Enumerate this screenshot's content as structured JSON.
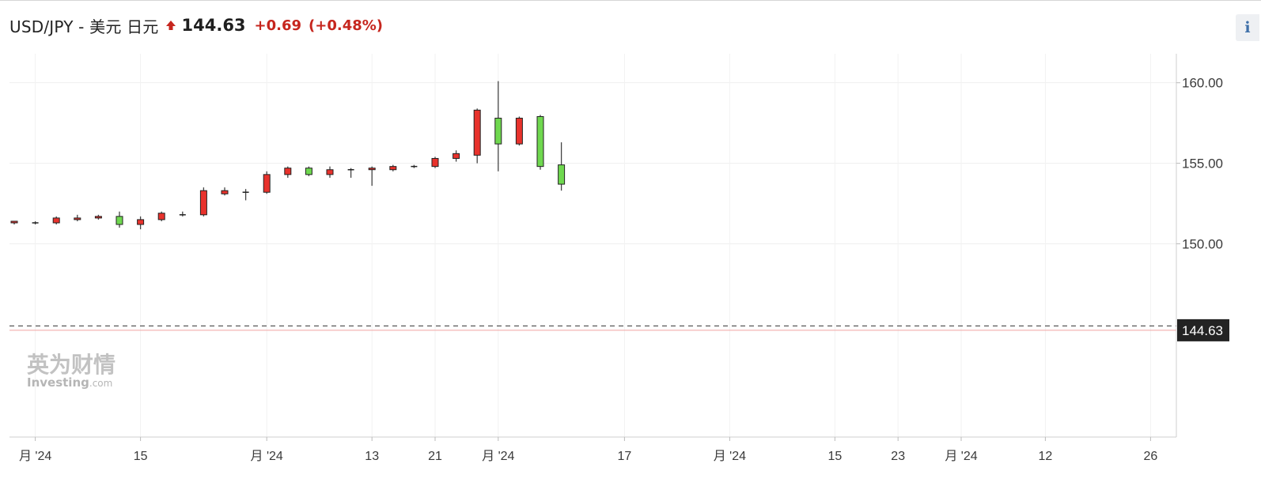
{
  "header": {
    "title": "USD/JPY - 美元 日元",
    "price": "144.63",
    "change": "+0.69",
    "change_pct": "(+0.48%)",
    "direction_icon": "arrow-up-icon",
    "change_color": "#c6261e",
    "info_label": "i"
  },
  "watermark": {
    "brand_cn": "英为财情",
    "brand_en": "Investing",
    "brand_suffix": ".com"
  },
  "chart_data": {
    "type": "candlestick",
    "ylim": [
      138,
      161.8
    ],
    "y_ticks": [
      150,
      155,
      160
    ],
    "y_tick_labels": [
      "150.00",
      "155.00",
      "160.00"
    ],
    "x_tick_labels": [
      {
        "label": "月 '24",
        "index": 1
      },
      {
        "label": "15",
        "index": 6
      },
      {
        "label": "月 '24",
        "index": 12
      },
      {
        "label": "13",
        "index": 17
      },
      {
        "label": "21",
        "index": 20
      },
      {
        "label": "月 '24",
        "index": 23
      },
      {
        "label": "17",
        "index": 29
      },
      {
        "label": "月 '24",
        "index": 34
      },
      {
        "label": "15",
        "index": 39
      },
      {
        "label": "23",
        "index": 42
      },
      {
        "label": "月 '24",
        "index": 45
      },
      {
        "label": "12",
        "index": 49
      },
      {
        "label": "26",
        "index": 54
      }
    ],
    "grid": true,
    "colors": {
      "up": "#e8322c",
      "down": "#6fd84f",
      "outline": "#222222",
      "wick": "#444444"
    },
    "last_price": 144.63,
    "last_price_label": "144.63",
    "reference_line": 144.9,
    "ohlc": [
      [
        151.3,
        151.4,
        151.2,
        151.4
      ],
      [
        151.3,
        151.4,
        151.2,
        151.3
      ],
      [
        151.3,
        151.7,
        151.2,
        151.6
      ],
      [
        151.5,
        151.8,
        151.4,
        151.6
      ],
      [
        151.6,
        151.8,
        151.5,
        151.7
      ],
      [
        151.7,
        152.0,
        151.0,
        151.2
      ],
      [
        151.2,
        151.7,
        150.9,
        151.5
      ],
      [
        151.5,
        152.0,
        151.4,
        151.9
      ],
      [
        151.8,
        152.0,
        151.7,
        151.8
      ],
      [
        151.8,
        153.5,
        151.7,
        153.3
      ],
      [
        153.1,
        153.5,
        153.0,
        153.3
      ],
      [
        153.2,
        153.4,
        152.7,
        153.2
      ],
      [
        153.2,
        154.5,
        153.1,
        154.3
      ],
      [
        154.3,
        154.8,
        154.1,
        154.7
      ],
      [
        154.7,
        154.8,
        154.2,
        154.3
      ],
      [
        154.3,
        154.8,
        154.1,
        154.6
      ],
      [
        154.6,
        154.7,
        154.1,
        154.6
      ],
      [
        154.6,
        154.8,
        153.6,
        154.7
      ],
      [
        154.6,
        154.9,
        154.5,
        154.8
      ],
      [
        154.8,
        154.9,
        154.7,
        154.8
      ],
      [
        154.8,
        155.4,
        154.7,
        155.3
      ],
      [
        155.3,
        155.8,
        155.1,
        155.6
      ],
      [
        155.5,
        158.4,
        155.0,
        158.3
      ],
      [
        157.8,
        160.1,
        154.5,
        156.2
      ],
      [
        156.2,
        157.9,
        156.1,
        157.8
      ],
      [
        157.9,
        158.0,
        154.6,
        154.8
      ],
      [
        154.9,
        156.3,
        153.3,
        153.7
      ]
    ]
  }
}
